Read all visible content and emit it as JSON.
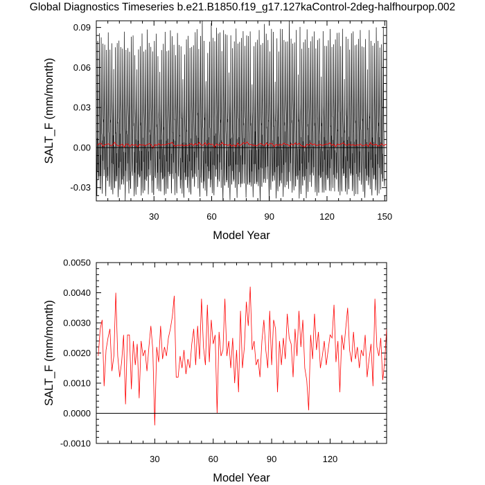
{
  "page": {
    "title": "Global Diagnostics Timeseries b.e21.B1850.f19_g17.127kaControl-2deg-halfhourpop.002"
  },
  "chart_data": [
    {
      "type": "line",
      "xlabel": "Model Year",
      "ylabel": "SALT_F (mm/month)",
      "xlim": [
        0,
        151
      ],
      "ylim": [
        -0.04,
        0.095
      ],
      "xticks": [
        30,
        60,
        90,
        120,
        150
      ],
      "xtick_labels": [
        "30",
        "60",
        "90",
        "120",
        "150"
      ],
      "yticks": [
        -0.03,
        0.0,
        0.03,
        0.06,
        0.09
      ],
      "ytick_labels": [
        "-0.03",
        "0.00",
        "0.03",
        "0.06",
        "0.09"
      ],
      "zero_line": true,
      "grid": false,
      "series": [
        {
          "resolution": "monthly",
          "color": "#000000",
          "annual_peak_max": [
            0.085,
            0.084,
            0.075,
            0.078,
            0.082,
            0.071,
            0.079,
            0.074,
            0.083,
            0.076,
            0.072,
            0.077,
            0.08,
            0.075,
            0.081,
            0.07,
            0.079,
            0.073,
            0.076,
            0.082,
            0.074,
            0.078,
            0.071,
            0.08,
            0.075,
            0.077,
            0.083,
            0.073,
            0.079,
            0.076,
            0.074,
            0.081,
            0.072,
            0.078,
            0.075,
            0.08,
            0.073,
            0.077,
            0.084,
            0.076,
            0.079,
            0.074,
            0.082,
            0.071,
            0.078,
            0.075,
            0.081,
            0.077,
            0.073,
            0.08,
            0.076,
            0.079,
            0.088,
            0.078,
            0.082,
            0.09,
            0.079,
            0.075,
            0.081,
            0.087,
            0.078,
            0.085,
            0.091,
            0.079,
            0.083,
            0.076,
            0.089,
            0.078,
            0.082,
            0.086,
            0.079,
            0.075,
            0.084,
            0.08,
            0.083,
            0.077,
            0.081,
            0.079,
            0.086,
            0.078,
            0.082,
            0.076,
            0.084,
            0.079,
            0.081,
            0.077,
            0.083,
            0.09,
            0.078,
            0.082,
            0.076,
            0.085,
            0.081,
            0.079,
            0.077,
            0.089,
            0.082,
            0.078,
            0.084,
            0.079,
            0.092,
            0.08,
            0.083,
            0.077,
            0.081,
            0.085,
            0.078,
            0.082,
            0.076,
            0.084,
            0.079,
            0.081,
            0.077,
            0.083,
            0.079,
            0.082,
            0.075,
            0.081,
            0.078,
            0.08,
            0.076,
            0.082,
            0.078,
            0.081,
            0.077,
            0.08,
            0.089,
            0.079,
            0.083,
            0.076,
            0.081,
            0.078,
            0.084,
            0.08,
            0.077,
            0.082,
            0.079,
            0.081,
            0.077,
            0.08,
            0.078,
            0.082,
            0.076,
            0.081,
            0.079,
            0.083,
            0.078,
            0.08,
            0.077,
            0.084
          ],
          "annual_trough_min": [
            -0.036,
            -0.031,
            -0.034,
            -0.029,
            -0.033,
            -0.03,
            -0.035,
            -0.028,
            -0.032,
            -0.037,
            -0.03,
            -0.033,
            -0.029,
            -0.034,
            -0.031,
            -0.036,
            -0.03,
            -0.033,
            -0.028,
            -0.035,
            -0.031,
            -0.032,
            -0.029,
            -0.034,
            -0.03,
            -0.036,
            -0.031,
            -0.033,
            -0.029,
            -0.035,
            -0.03,
            -0.032,
            -0.028,
            -0.034,
            -0.031,
            -0.036,
            -0.03,
            -0.033,
            -0.029,
            -0.035,
            -0.031,
            -0.032,
            -0.028,
            -0.034,
            -0.03,
            -0.036,
            -0.031,
            -0.033,
            -0.029,
            -0.035,
            -0.03,
            -0.032,
            -0.028,
            -0.034,
            -0.031,
            -0.036,
            -0.03,
            -0.033,
            -0.029,
            -0.035,
            -0.031,
            -0.032,
            -0.028,
            -0.034,
            -0.03,
            -0.036,
            -0.031,
            -0.033,
            -0.029,
            -0.035,
            -0.03,
            -0.032,
            -0.028,
            -0.034,
            -0.031,
            -0.036,
            -0.03,
            -0.033,
            -0.029,
            -0.035,
            -0.031,
            -0.032,
            -0.028,
            -0.034,
            -0.03,
            -0.036,
            -0.031,
            -0.033,
            -0.029,
            -0.035,
            -0.03,
            -0.032,
            -0.028,
            -0.034,
            -0.031,
            -0.036,
            -0.03,
            -0.033,
            -0.029,
            -0.035,
            -0.031,
            -0.032,
            -0.028,
            -0.034,
            -0.03,
            -0.036,
            -0.031,
            -0.033,
            -0.029,
            -0.035,
            -0.03,
            -0.032,
            -0.028,
            -0.034,
            -0.031,
            -0.036,
            -0.03,
            -0.033,
            -0.029,
            -0.035,
            -0.031,
            -0.032,
            -0.028,
            -0.034,
            -0.03,
            -0.036,
            -0.031,
            -0.033,
            -0.029,
            -0.035,
            -0.03,
            -0.032,
            -0.028,
            -0.034,
            -0.031,
            -0.036,
            -0.03,
            -0.033,
            -0.029,
            -0.035,
            -0.031,
            -0.032,
            -0.028,
            -0.034,
            -0.03,
            -0.036,
            -0.031,
            -0.033,
            -0.029,
            -0.035,
            -0.03
          ]
        },
        {
          "resolution": "annual mean",
          "color": "#ff0000",
          "values": [
            0.0019,
            0.0028,
            0.0031,
            0.0009,
            0.0021,
            0.0025,
            0.0028,
            0.0014,
            0.0019,
            0.004,
            0.0019,
            0.0012,
            0.0017,
            0.0026,
            0.0003,
            0.0026,
            0.0026,
            0.0008,
            0.0024,
            0.0016,
            0.0023,
            0.0005,
            0.0024,
            0.0019,
            0.0021,
            0.0014,
            0.0022,
            0.0029,
            0.0021,
            -0.0004,
            0.0022,
            0.0017,
            0.0029,
            0.0018,
            0.0022,
            0.0019,
            0.0025,
            0.0028,
            0.0032,
            0.0039,
            0.0012,
            0.0012,
            0.0019,
            0.0015,
            0.0021,
            0.0013,
            0.0018,
            0.0015,
            0.0023,
            0.0028,
            0.0016,
            0.0029,
            0.0018,
            0.0038,
            0.0022,
            0.0016,
            0.0036,
            0.0017,
            0.0031,
            0.0023,
            0.0026,
            0.0,
            0.0027,
            0.0019,
            0.0021,
            0.0038,
            0.0019,
            0.0024,
            0.0015,
            0.0025,
            0.001,
            0.0021,
            0.0007,
            0.0034,
            0.0015,
            0.0022,
            0.0037,
            0.0029,
            0.0042,
            0.0021,
            0.0024,
            0.0016,
            0.0018,
            0.0012,
            0.0024,
            0.0031,
            0.0021,
            0.0015,
            0.0034,
            0.0016,
            0.0031,
            0.0028,
            0.0007,
            0.0024,
            0.0016,
            0.0025,
            0.0018,
            0.0033,
            0.0025,
            0.0023,
            0.0012,
            0.0028,
            0.0019,
            0.0034,
            0.0022,
            0.0031,
            0.0015,
            0.0011,
            0.0001,
            0.0026,
            0.0018,
            0.0033,
            0.0021,
            0.0027,
            0.0015,
            0.0019,
            0.0024,
            0.0016,
            0.0021,
            0.0026,
            0.0025,
            0.0036,
            0.0017,
            0.0024,
            0.0007,
            0.0026,
            0.0021,
            0.0028,
            0.0035,
            0.0021,
            0.0017,
            0.0027,
            0.0018,
            0.0022,
            0.0015,
            0.0021,
            0.0019,
            0.0026,
            0.0012,
            0.0018,
            0.0023,
            0.0009,
            0.0038,
            0.0022,
            0.0019,
            0.0025,
            0.0011,
            0.0017,
            0.0028,
            0.0013,
            0.0024,
            0.0017,
            0.0021,
            0.0009,
            0.0026,
            0.0018,
            0.0031,
            0.002,
            0.0034,
            0.0029
          ]
        }
      ]
    },
    {
      "type": "line",
      "xlabel": "Model Year",
      "ylabel": "SALT_F (mm/month)",
      "xlim": [
        0,
        149
      ],
      "ylim": [
        -0.001,
        0.005
      ],
      "xticks": [
        30,
        60,
        90,
        120
      ],
      "xtick_labels": [
        "30",
        "60",
        "90",
        "120"
      ],
      "yticks": [
        -0.001,
        0.0,
        0.001,
        0.002,
        0.003,
        0.004,
        0.005
      ],
      "ytick_labels": [
        "-0.0010",
        "0.0000",
        "0.0010",
        "0.0020",
        "0.0030",
        "0.0040",
        "0.0050"
      ],
      "zero_line": true,
      "grid": false,
      "series": [
        {
          "resolution": "annual mean",
          "color": "#ff0000",
          "x": [
            1,
            2,
            3,
            4,
            5,
            6,
            7,
            8,
            9,
            10,
            11,
            12,
            13,
            14,
            15,
            16,
            17,
            18,
            19,
            20,
            21,
            22,
            23,
            24,
            25,
            26,
            27,
            28,
            29,
            30,
            31,
            32,
            33,
            34,
            35,
            36,
            37,
            38,
            39,
            40,
            41,
            42,
            43,
            44,
            45,
            46,
            47,
            48,
            49,
            50,
            51,
            52,
            53,
            54,
            55,
            56,
            57,
            58,
            59,
            60,
            61,
            62,
            63,
            64,
            65,
            66,
            67,
            68,
            69,
            70,
            71,
            72,
            73,
            74,
            75,
            76,
            77,
            78,
            79,
            80,
            81,
            82,
            83,
            84,
            85,
            86,
            87,
            88,
            89,
            90,
            91,
            92,
            93,
            94,
            95,
            96,
            97,
            98,
            99,
            100,
            101,
            102,
            103,
            104,
            105,
            106,
            107,
            108,
            109,
            110,
            111,
            112,
            113,
            114,
            115,
            116,
            117,
            118,
            119,
            120,
            121,
            122,
            123,
            124,
            125,
            126,
            127,
            128,
            129,
            130,
            131,
            132,
            133,
            134,
            135,
            136,
            137,
            138,
            139,
            140,
            141,
            142,
            143,
            144,
            145,
            146,
            147,
            148,
            149
          ],
          "values": [
            0.0019,
            0.0028,
            0.0031,
            0.0009,
            0.0021,
            0.0025,
            0.0028,
            0.0014,
            0.0019,
            0.004,
            0.0019,
            0.0012,
            0.0017,
            0.0026,
            0.0003,
            0.0026,
            0.0026,
            0.0008,
            0.0024,
            0.0016,
            0.0023,
            0.0005,
            0.0024,
            0.0019,
            0.0021,
            0.0014,
            0.0022,
            0.0029,
            0.0021,
            -0.0004,
            0.0022,
            0.0017,
            0.0029,
            0.0018,
            0.0022,
            0.0019,
            0.0025,
            0.0028,
            0.0032,
            0.0039,
            0.0012,
            0.0012,
            0.0019,
            0.0015,
            0.0021,
            0.0013,
            0.0018,
            0.0015,
            0.0023,
            0.0028,
            0.0016,
            0.0029,
            0.0018,
            0.0038,
            0.0022,
            0.0016,
            0.0036,
            0.0017,
            0.0031,
            0.0023,
            0.0026,
            0.0,
            0.0027,
            0.0019,
            0.0021,
            0.0038,
            0.0019,
            0.0024,
            0.0015,
            0.0025,
            0.001,
            0.0021,
            0.0007,
            0.0034,
            0.0015,
            0.0022,
            0.0037,
            0.0029,
            0.0042,
            0.0021,
            0.0024,
            0.0016,
            0.0018,
            0.0012,
            0.0024,
            0.0031,
            0.0021,
            0.0015,
            0.0034,
            0.0016,
            0.0031,
            0.0028,
            0.0007,
            0.0024,
            0.0016,
            0.0025,
            0.0018,
            0.0033,
            0.0025,
            0.0023,
            0.0012,
            0.0028,
            0.0019,
            0.0034,
            0.0022,
            0.0031,
            0.0015,
            0.0011,
            0.0001,
            0.0026,
            0.0018,
            0.0033,
            0.0021,
            0.0027,
            0.0015,
            0.0019,
            0.0024,
            0.0016,
            0.0021,
            0.0026,
            0.0025,
            0.0036,
            0.0017,
            0.0024,
            0.0007,
            0.0026,
            0.0021,
            0.0028,
            0.0035,
            0.0021,
            0.0017,
            0.0027,
            0.0018,
            0.0022,
            0.0015,
            0.0021,
            0.0019,
            0.0026,
            0.0012,
            0.0018,
            0.0023,
            0.0009,
            0.0038,
            0.0022,
            0.0019,
            0.0025,
            0.0011,
            0.0017,
            0.0028
          ]
        }
      ]
    }
  ]
}
